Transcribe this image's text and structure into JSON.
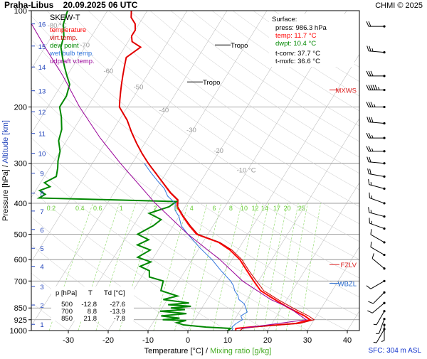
{
  "header": {
    "title": "Praha-Libus    20.09.2025 06 UTC",
    "credit": "CHMI © 2025"
  },
  "colors": {
    "temperature": "#ff0000",
    "virt_temperature": "#cc0000",
    "dew_point": "#008800",
    "wet_bulb": "#3377dd",
    "udpraft": "#990099",
    "mixing_ratio": "#66cc33",
    "axes": "#000000",
    "isobar": "#888888"
  },
  "chart_data": {
    "type": "line",
    "skew": "skew-T log-p",
    "panel_label": "SKEW-T",
    "legend": [
      "temperature",
      "virt.temp.",
      "dew point",
      "wet bulb temp.",
      "udpraft v.temp."
    ],
    "legend_placement": "top-left",
    "xlabel_parts": [
      "Temperature [°C]",
      " / ",
      "Mixing ratio [g/kg]"
    ],
    "ylabel_parts": [
      "Pressure [hPa]",
      " / ",
      "Altitude [km]"
    ],
    "xlim": [
      -35,
      45
    ],
    "ylim": [
      1000,
      100
    ],
    "pressure_ticks": [
      {
        "p": 100,
        "label": "100"
      },
      {
        "p": 200,
        "label": "200"
      },
      {
        "p": 300,
        "label": "300"
      },
      {
        "p": 400,
        "label": "400"
      },
      {
        "p": 500,
        "label": "500"
      },
      {
        "p": 600,
        "label": "600"
      },
      {
        "p": 700,
        "label": "700"
      },
      {
        "p": 850,
        "label": "850"
      },
      {
        "p": 925,
        "label": "925"
      },
      {
        "p": 1000,
        "label": "1000"
      }
    ],
    "temperature_ticks": [
      {
        "t": -30,
        "label": "-30"
      },
      {
        "t": -20,
        "label": "-20"
      },
      {
        "t": -10,
        "label": "-10"
      },
      {
        "t": 0,
        "label": "0"
      },
      {
        "t": 10,
        "label": "10"
      },
      {
        "t": 20,
        "label": "20"
      },
      {
        "t": 30,
        "label": "30"
      },
      {
        "t": 40,
        "label": "40"
      }
    ],
    "altitude_ticks": [
      {
        "p": 956,
        "label": "1"
      },
      {
        "p": 832,
        "label": "2"
      },
      {
        "p": 728,
        "label": "3"
      },
      {
        "p": 630,
        "label": "4"
      },
      {
        "p": 553,
        "label": "5"
      },
      {
        "p": 483,
        "label": "6"
      },
      {
        "p": 423,
        "label": "7"
      },
      {
        "p": 372,
        "label": "8"
      },
      {
        "p": 322,
        "label": "9"
      },
      {
        "p": 279,
        "label": "10"
      },
      {
        "p": 242,
        "label": "11"
      },
      {
        "p": 207,
        "label": "12"
      },
      {
        "p": 178,
        "label": "13"
      },
      {
        "p": 150,
        "label": "14"
      },
      {
        "p": 129,
        "label": "15"
      },
      {
        "p": 110,
        "label": "16"
      }
    ],
    "isotherm_labels": [
      {
        "t": -80,
        "p": 113,
        "label": "-80 °C"
      },
      {
        "t": -70,
        "p": 130,
        "label": "-70"
      },
      {
        "t": -60,
        "p": 157,
        "label": "-60"
      },
      {
        "t": -50,
        "p": 176,
        "label": "-50"
      },
      {
        "t": -40,
        "p": 208,
        "label": "-40"
      },
      {
        "t": -30,
        "p": 240,
        "label": "-30"
      },
      {
        "t": -20,
        "p": 278,
        "label": "-20"
      },
      {
        "t": -10,
        "p": 320,
        "label": "-10 °C"
      }
    ],
    "mixing_ratio_labels": [
      "0.2",
      "0.4",
      "0.6",
      "1",
      "2",
      "3",
      "4",
      "6",
      "8",
      "10",
      "12",
      "14",
      "17",
      "20",
      "25"
    ],
    "series": [
      {
        "name": "temperature",
        "profile": [
          [
            1000,
            12
          ],
          [
            985,
            11.7
          ],
          [
            975,
            15
          ],
          [
            950,
            26
          ],
          [
            925,
            29
          ],
          [
            900,
            27
          ],
          [
            850,
            21.8
          ],
          [
            800,
            17
          ],
          [
            750,
            12
          ],
          [
            700,
            8.8
          ],
          [
            650,
            5.5
          ],
          [
            600,
            2
          ],
          [
            560,
            -2
          ],
          [
            530,
            -6
          ],
          [
            500,
            -12.8
          ],
          [
            470,
            -16
          ],
          [
            440,
            -19
          ],
          [
            410,
            -22
          ],
          [
            390,
            -23
          ],
          [
            370,
            -26
          ],
          [
            340,
            -30
          ],
          [
            300,
            -36
          ],
          [
            280,
            -39
          ],
          [
            260,
            -42
          ],
          [
            240,
            -45
          ],
          [
            220,
            -48
          ],
          [
            200,
            -52
          ],
          [
            190,
            -53
          ],
          [
            180,
            -54
          ],
          [
            170,
            -55
          ],
          [
            160,
            -56
          ],
          [
            150,
            -57
          ],
          [
            140,
            -58
          ],
          [
            130,
            -56
          ],
          [
            125,
            -59
          ],
          [
            120,
            -60
          ],
          [
            115,
            -60
          ],
          [
            110,
            -61
          ],
          [
            105,
            -63
          ],
          [
            100,
            -64
          ]
        ]
      },
      {
        "name": "virt.temp.",
        "profile": [
          [
            1000,
            13
          ],
          [
            985,
            13.5
          ],
          [
            975,
            16
          ],
          [
            950,
            27
          ],
          [
            925,
            30
          ],
          [
            900,
            28
          ],
          [
            850,
            22.8
          ],
          [
            800,
            17.8
          ],
          [
            750,
            12.8
          ],
          [
            700,
            9.5
          ],
          [
            650,
            6
          ],
          [
            600,
            2.5
          ],
          [
            560,
            -1.5
          ],
          [
            530,
            -5.7
          ],
          [
            500,
            -12.5
          ],
          [
            470,
            -15.7
          ],
          [
            440,
            -18.8
          ],
          [
            410,
            -21.8
          ],
          [
            390,
            -22.8
          ],
          [
            370,
            -25.8
          ],
          [
            340,
            -29.9
          ],
          [
            300,
            -35.9
          ],
          [
            280,
            -39
          ],
          [
            260,
            -42
          ],
          [
            240,
            -45
          ],
          [
            220,
            -48
          ],
          [
            200,
            -52
          ],
          [
            190,
            -53
          ],
          [
            180,
            -54
          ],
          [
            170,
            -55
          ],
          [
            160,
            -56
          ],
          [
            150,
            -57
          ],
          [
            140,
            -58
          ],
          [
            130,
            -56
          ],
          [
            125,
            -59
          ],
          [
            120,
            -60
          ],
          [
            115,
            -60
          ],
          [
            110,
            -61
          ],
          [
            105,
            -63
          ],
          [
            100,
            -64
          ]
        ]
      },
      {
        "name": "dew point",
        "profile": [
          [
            1000,
            10
          ],
          [
            985,
            10.4
          ],
          [
            975,
            4
          ],
          [
            960,
            -2
          ],
          [
            945,
            -4
          ],
          [
            930,
            -2
          ],
          [
            925,
            -8
          ],
          [
            915,
            -4
          ],
          [
            900,
            -9
          ],
          [
            885,
            -3
          ],
          [
            870,
            -10
          ],
          [
            860,
            -4
          ],
          [
            850,
            -7.8
          ],
          [
            840,
            -3
          ],
          [
            830,
            -9
          ],
          [
            820,
            -4
          ],
          [
            800,
            -11
          ],
          [
            780,
            -8
          ],
          [
            750,
            -13
          ],
          [
            700,
            -13.9
          ],
          [
            680,
            -18
          ],
          [
            650,
            -19
          ],
          [
            630,
            -22
          ],
          [
            610,
            -20
          ],
          [
            590,
            -24
          ],
          [
            560,
            -22
          ],
          [
            540,
            -26
          ],
          [
            520,
            -24
          ],
          [
            500,
            -27.6
          ],
          [
            470,
            -25
          ],
          [
            450,
            -24
          ],
          [
            430,
            -28
          ],
          [
            410,
            -24
          ],
          [
            395,
            -23
          ],
          [
            390,
            -40
          ],
          [
            385,
            -58
          ],
          [
            375,
            -57
          ],
          [
            365,
            -59
          ],
          [
            355,
            -57
          ],
          [
            345,
            -59
          ],
          [
            330,
            -57
          ],
          [
            310,
            -58
          ],
          [
            295,
            -59
          ],
          [
            275,
            -60
          ],
          [
            255,
            -62
          ],
          [
            235,
            -63
          ],
          [
            215,
            -65
          ],
          [
            200,
            -67
          ],
          [
            185,
            -67
          ],
          [
            170,
            -68
          ],
          [
            160,
            -70
          ],
          [
            150,
            -72
          ],
          [
            140,
            -74
          ],
          [
            130,
            -76
          ],
          [
            120,
            -77
          ],
          [
            110,
            -79
          ],
          [
            100,
            -80
          ]
        ]
      },
      {
        "name": "wet bulb temp.",
        "profile": [
          [
            1000,
            11
          ],
          [
            985,
            11
          ],
          [
            975,
            10.5
          ],
          [
            950,
            11
          ],
          [
            925,
            12
          ],
          [
            900,
            11
          ],
          [
            875,
            12
          ],
          [
            850,
            11
          ],
          [
            825,
            10
          ],
          [
            800,
            8
          ],
          [
            775,
            7
          ],
          [
            750,
            5.5
          ],
          [
            725,
            4.5
          ],
          [
            700,
            3
          ],
          [
            650,
            -1
          ],
          [
            600,
            -5
          ],
          [
            550,
            -10
          ],
          [
            500,
            -15
          ],
          [
            470,
            -18
          ],
          [
            440,
            -20
          ],
          [
            420,
            -22
          ],
          [
            400,
            -23
          ],
          [
            380,
            -26
          ],
          [
            360,
            -28
          ],
          [
            340,
            -31
          ],
          [
            320,
            -34
          ],
          [
            300,
            -37
          ]
        ]
      },
      {
        "name": "udpraft v.temp.",
        "profile": [
          [
            985,
            13
          ],
          [
            925,
            28
          ],
          [
            850,
            22
          ],
          [
            800,
            16
          ],
          [
            700,
            6
          ],
          [
            600,
            -3
          ],
          [
            500,
            -15
          ],
          [
            400,
            -28
          ],
          [
            300,
            -43
          ],
          [
            250,
            -52
          ],
          [
            200,
            -62
          ],
          [
            160,
            -71
          ],
          [
            130,
            -80
          ],
          [
            110,
            -87
          ],
          [
            100,
            -90
          ]
        ]
      }
    ],
    "tropopause": [
      {
        "p": 128,
        "label": "Tropo"
      },
      {
        "p": 167,
        "label": "Tropo"
      }
    ],
    "levels": [
      {
        "p": 177,
        "label": "MXWS",
        "color": "#dd2222"
      },
      {
        "p": 622,
        "label": "FZLV",
        "color": "#dd2222"
      },
      {
        "p": 712,
        "label": "WBZL",
        "color": "#2266cc"
      }
    ],
    "wind_barbs": [
      {
        "p": 112,
        "dir": 270,
        "speed": 20
      },
      {
        "p": 135,
        "dir": 275,
        "speed": 25
      },
      {
        "p": 160,
        "dir": 270,
        "speed": 30
      },
      {
        "p": 177,
        "dir": 270,
        "speed": 55
      },
      {
        "p": 200,
        "dir": 270,
        "speed": 35
      },
      {
        "p": 225,
        "dir": 275,
        "speed": 30
      },
      {
        "p": 250,
        "dir": 270,
        "speed": 25
      },
      {
        "p": 275,
        "dir": 270,
        "speed": 25
      },
      {
        "p": 300,
        "dir": 275,
        "speed": 20
      },
      {
        "p": 330,
        "dir": 280,
        "speed": 20
      },
      {
        "p": 360,
        "dir": 285,
        "speed": 15
      },
      {
        "p": 400,
        "dir": 290,
        "speed": 15
      },
      {
        "p": 440,
        "dir": 285,
        "speed": 15
      },
      {
        "p": 480,
        "dir": 290,
        "speed": 15
      },
      {
        "p": 530,
        "dir": 300,
        "speed": 10
      },
      {
        "p": 580,
        "dir": 300,
        "speed": 10
      },
      {
        "p": 640,
        "dir": 310,
        "speed": 10
      },
      {
        "p": 700,
        "dir": 240,
        "speed": 10
      },
      {
        "p": 760,
        "dir": 225,
        "speed": 10
      },
      {
        "p": 820,
        "dir": 230,
        "speed": 10
      },
      {
        "p": 870,
        "dir": 210,
        "speed": 5
      },
      {
        "p": 920,
        "dir": 200,
        "speed": 5
      },
      {
        "p": 960,
        "dir": 180,
        "speed": 5
      },
      {
        "p": 990,
        "dir": 210,
        "speed": 5
      }
    ]
  },
  "surface": {
    "title": "Surface:",
    "press": "press: 986.3 hPa",
    "temp": "temp: 11.7 °C",
    "dwpt": "dwpt: 10.4 °C",
    "tconv": "t-conv: 37.7 °C",
    "tmxfc": "t-mxfc: 36.6 °C"
  },
  "table": {
    "headers": [
      "p [hPa]",
      "T",
      "Td [°C]"
    ],
    "rows": [
      [
        "500",
        "-12.8",
        "-27.6"
      ],
      [
        "700",
        "8.8",
        "-13.9"
      ],
      [
        "850",
        "21.8",
        "-7.8"
      ]
    ]
  },
  "footer": {
    "sfc": "SFC: 304 m ASL"
  }
}
